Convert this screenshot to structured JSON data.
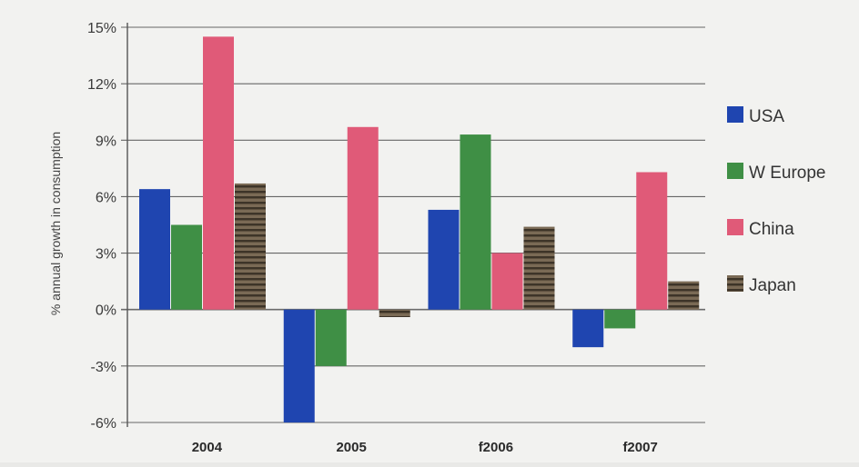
{
  "chart_data": {
    "type": "bar",
    "title": "",
    "xlabel": "",
    "ylabel": "% annual growth in consumption",
    "categories": [
      "2004",
      "2005",
      "f2006",
      "f2007"
    ],
    "yticks": [
      "15%",
      "12%",
      "9%",
      "6%",
      "3%",
      "0%",
      "-3%",
      "-6%"
    ],
    "ylim": [
      -6,
      15
    ],
    "grid": true,
    "legend_position": "right",
    "series": [
      {
        "name": "USA",
        "color": "#1f45b0",
        "values": [
          6.4,
          -6.0,
          5.3,
          -2.0
        ]
      },
      {
        "name": "W Europe",
        "color": "#3f8f45",
        "values": [
          4.5,
          -3.0,
          9.3,
          -1.0
        ]
      },
      {
        "name": "China",
        "color": "#e05a78",
        "values": [
          14.5,
          9.7,
          3.0,
          7.3
        ]
      },
      {
        "name": "Japan",
        "color": "#6b5a45",
        "values": [
          6.7,
          -0.4,
          4.4,
          1.5
        ]
      }
    ]
  }
}
